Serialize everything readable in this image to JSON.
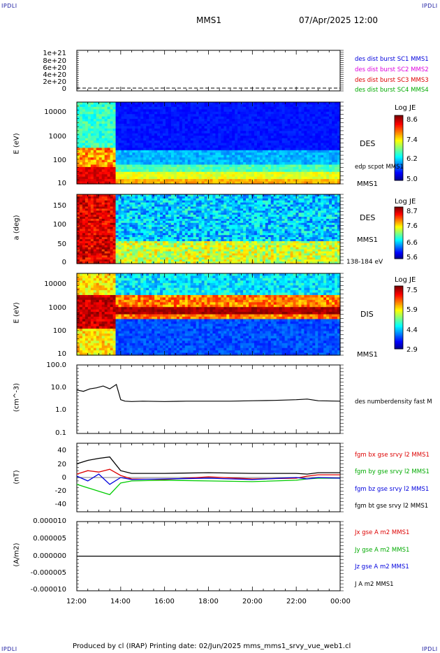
{
  "corners": {
    "top_left": "IPDLI",
    "top_right": "IPDLI",
    "bottom_left": "IPDLI",
    "bottom_right": "IPDLI"
  },
  "header": {
    "spacecraft": "MMS1",
    "datetime": "07/Apr/2025 12:00"
  },
  "footer": {
    "text": "Produced by cl (IRAP)   Printing date: 02/Jun/2025   mms_mms1_srvy_vue_web1.cl"
  },
  "colors": {
    "red": "#dd0000",
    "magenta": "#dd00dd",
    "green": "#00cc00",
    "blue": "#0000dd",
    "black": "#000000",
    "dashed": "#000000"
  },
  "chart_data": [
    {
      "type": "line",
      "panel": "burst",
      "ylabel": "",
      "yticks": [
        "1e+21",
        "8e+20",
        "6e+20",
        "4e+20",
        "2e+20",
        "0"
      ],
      "ylim": [
        0,
        1.1e+21
      ],
      "series": [
        {
          "name": "des dist burst SC1 MMS1",
          "color": "#0000dd"
        },
        {
          "name": "des dist burst SC2 MMS2",
          "color": "#dd00dd"
        },
        {
          "name": "des dist burst SC3 MMS3",
          "color": "#dd0000"
        },
        {
          "name": "des dist burst SC4 MMS4",
          "color": "#00cc00"
        }
      ]
    },
    {
      "type": "heatmap",
      "panel": "des_energy",
      "ylabel": "E (eV)",
      "yscale": "log",
      "yticks": [
        "10000",
        "1000",
        "100",
        "10"
      ],
      "ylim": [
        10,
        30000
      ],
      "right_labels": [
        "DES",
        "edp scpot MMS1",
        "MMS1"
      ],
      "colorbar": {
        "title": "Log JE",
        "ticks": [
          "8.6",
          "7.4",
          "6.2",
          "5.0"
        ],
        "range": [
          5.0,
          8.6
        ]
      }
    },
    {
      "type": "heatmap",
      "panel": "des_pitch",
      "ylabel": "a (deg)",
      "yticks": [
        "150",
        "100",
        "50",
        "0"
      ],
      "ylim": [
        0,
        180
      ],
      "right_labels": [
        "DES",
        "MMS1",
        "138-184 eV"
      ],
      "colorbar": {
        "title": "Log JE",
        "ticks": [
          "8.7",
          "7.6",
          "6.6",
          "5.6"
        ],
        "range": [
          5.6,
          8.7
        ]
      }
    },
    {
      "type": "heatmap",
      "panel": "dis_energy",
      "ylabel": "E (eV)",
      "yscale": "log",
      "yticks": [
        "10000",
        "1000",
        "100",
        "10"
      ],
      "ylim": [
        10,
        20000
      ],
      "right_labels": [
        "DIS",
        "MMS1"
      ],
      "colorbar": {
        "title": "Log JE",
        "ticks": [
          "7.5",
          "5.9",
          "4.4",
          "2.9"
        ],
        "range": [
          2.9,
          7.5
        ]
      }
    },
    {
      "type": "line",
      "panel": "density",
      "ylabel": "(cm^-3)",
      "yscale": "log",
      "yticks": [
        "100.0",
        "10.0",
        "1.0",
        "0.1"
      ],
      "ylim": [
        0.1,
        100
      ],
      "series": [
        {
          "name": "des numberdensity fast M",
          "color": "#000000",
          "x": [
            12.0,
            12.3,
            12.6,
            12.9,
            13.2,
            13.5,
            13.8,
            14.0,
            14.2,
            14.5,
            15.0,
            16.0,
            17.0,
            18.0,
            19.0,
            20.0,
            21.0,
            22.0,
            22.5,
            23.0,
            24.0
          ],
          "y": [
            8,
            7,
            9,
            10,
            12,
            9,
            14,
            3,
            2.6,
            2.5,
            2.6,
            2.5,
            2.6,
            2.6,
            2.6,
            2.7,
            2.8,
            3.0,
            3.2,
            2.7,
            2.6
          ]
        }
      ]
    },
    {
      "type": "line",
      "panel": "magnetic_field",
      "ylabel": "(nT)",
      "yticks": [
        "40",
        "20",
        "0",
        "-20",
        "-40"
      ],
      "ylim": [
        -50,
        50
      ],
      "series": [
        {
          "name": "fgm bx gse srvy l2 MMS1",
          "color": "#dd0000",
          "x": [
            12,
            12.5,
            13,
            13.5,
            14,
            14.5,
            16,
            18,
            20,
            22,
            22.5,
            23,
            24
          ],
          "y": [
            5,
            10,
            8,
            12,
            3,
            -2,
            -3,
            1,
            -2,
            -1,
            2,
            4,
            4
          ]
        },
        {
          "name": "fgm by gse srvy l2 MMS1",
          "color": "#00cc00",
          "x": [
            12,
            12.5,
            13,
            13.5,
            14,
            14.5,
            16,
            18,
            20,
            22,
            22.5,
            23,
            24
          ],
          "y": [
            -10,
            -15,
            -20,
            -25,
            -8,
            -5,
            -4,
            -5,
            -6,
            -4,
            -2,
            -1,
            -1
          ]
        },
        {
          "name": "fgm bz gse srvy l2 MMS1",
          "color": "#0000dd",
          "x": [
            12,
            12.5,
            13,
            13.5,
            14,
            14.5,
            16,
            18,
            20,
            22,
            22.5,
            23,
            24
          ],
          "y": [
            2,
            -5,
            5,
            -10,
            0,
            -3,
            -2,
            -1,
            -3,
            0,
            -2,
            0,
            -1
          ]
        },
        {
          "name": "fgm bt gse srvy l2 MMS1",
          "color": "#000000",
          "x": [
            12,
            12.5,
            13,
            13.5,
            14,
            14.5,
            16,
            18,
            20,
            22,
            22.5,
            23,
            24
          ],
          "y": [
            20,
            25,
            28,
            30,
            10,
            6,
            6,
            7,
            6,
            6,
            5,
            7,
            7
          ]
        }
      ]
    },
    {
      "type": "line",
      "panel": "current_density",
      "ylabel": "(A/m2)",
      "yticks": [
        "0.000010",
        "0.000005",
        "0.000000",
        "-0.000005",
        "-0.000010"
      ],
      "ylim": [
        -1e-05,
        1e-05
      ],
      "series": [
        {
          "name": "Jx gse A m2 MMS1",
          "color": "#dd0000"
        },
        {
          "name": "Jy gse A m2 MMS1",
          "color": "#00cc00"
        },
        {
          "name": "Jz gse A m2 MMS1",
          "color": "#0000dd"
        },
        {
          "name": "J A m2 MMS1",
          "color": "#000000"
        }
      ]
    }
  ],
  "x_axis": {
    "ticks": [
      "12:00",
      "14:00",
      "16:00",
      "18:00",
      "20:00",
      "22:00",
      "00:00"
    ],
    "range": [
      12,
      24
    ]
  }
}
